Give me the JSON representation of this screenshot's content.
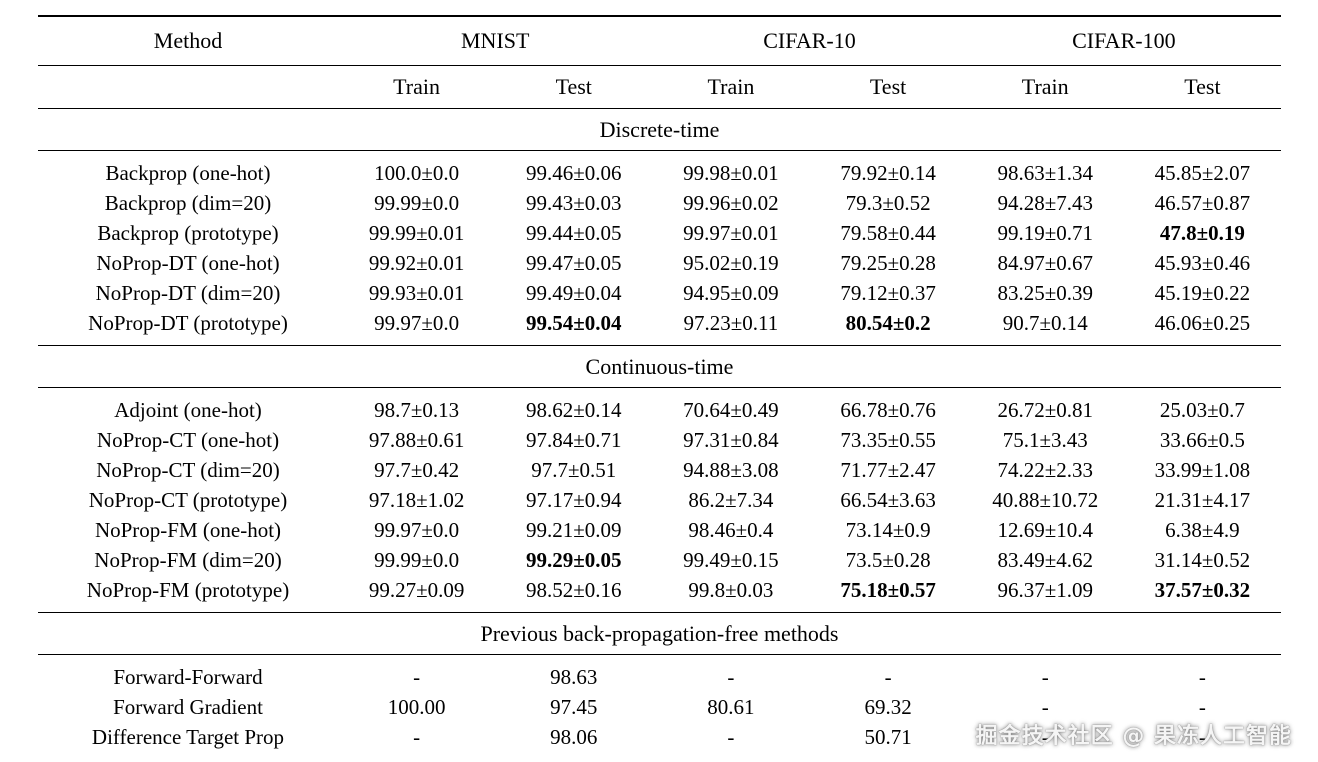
{
  "table": {
    "method_header": "Method",
    "groups": [
      "MNIST",
      "CIFAR-10",
      "CIFAR-100"
    ],
    "subheaders": [
      "Train",
      "Test",
      "Train",
      "Test",
      "Train",
      "Test"
    ],
    "sections": [
      {
        "title": "Discrete-time",
        "rows": [
          {
            "method": "Backprop (one-hot)",
            "values": [
              "100.0±0.0",
              "99.46±0.06",
              "99.98±0.01",
              "79.92±0.14",
              "98.63±1.34",
              "45.85±2.07"
            ],
            "bold": []
          },
          {
            "method": "Backprop (dim=20)",
            "values": [
              "99.99±0.0",
              "99.43±0.03",
              "99.96±0.02",
              "79.3±0.52",
              "94.28±7.43",
              "46.57±0.87"
            ],
            "bold": []
          },
          {
            "method": "Backprop (prototype)",
            "values": [
              "99.99±0.01",
              "99.44±0.05",
              "99.97±0.01",
              "79.58±0.44",
              "99.19±0.71",
              "47.8±0.19"
            ],
            "bold": [
              5
            ]
          },
          {
            "method": "NoProp-DT (one-hot)",
            "values": [
              "99.92±0.01",
              "99.47±0.05",
              "95.02±0.19",
              "79.25±0.28",
              "84.97±0.67",
              "45.93±0.46"
            ],
            "bold": []
          },
          {
            "method": "NoProp-DT (dim=20)",
            "values": [
              "99.93±0.01",
              "99.49±0.04",
              "94.95±0.09",
              "79.12±0.37",
              "83.25±0.39",
              "45.19±0.22"
            ],
            "bold": []
          },
          {
            "method": "NoProp-DT (prototype)",
            "values": [
              "99.97±0.0",
              "99.54±0.04",
              "97.23±0.11",
              "80.54±0.2",
              "90.7±0.14",
              "46.06±0.25"
            ],
            "bold": [
              1,
              3
            ]
          }
        ]
      },
      {
        "title": "Continuous-time",
        "rows": [
          {
            "method": "Adjoint (one-hot)",
            "values": [
              "98.7±0.13",
              "98.62±0.14",
              "70.64±0.49",
              "66.78±0.76",
              "26.72±0.81",
              "25.03±0.7"
            ],
            "bold": []
          },
          {
            "method": "NoProp-CT (one-hot)",
            "values": [
              "97.88±0.61",
              "97.84±0.71",
              "97.31±0.84",
              "73.35±0.55",
              "75.1±3.43",
              "33.66±0.5"
            ],
            "bold": []
          },
          {
            "method": "NoProp-CT (dim=20)",
            "values": [
              "97.7±0.42",
              "97.7±0.51",
              "94.88±3.08",
              "71.77±2.47",
              "74.22±2.33",
              "33.99±1.08"
            ],
            "bold": []
          },
          {
            "method": "NoProp-CT (prototype)",
            "values": [
              "97.18±1.02",
              "97.17±0.94",
              "86.2±7.34",
              "66.54±3.63",
              "40.88±10.72",
              "21.31±4.17"
            ],
            "bold": []
          },
          {
            "method": "NoProp-FM (one-hot)",
            "values": [
              "99.97±0.0",
              "99.21±0.09",
              "98.46±0.4",
              "73.14±0.9",
              "12.69±10.4",
              "6.38±4.9"
            ],
            "bold": []
          },
          {
            "method": "NoProp-FM (dim=20)",
            "values": [
              "99.99±0.0",
              "99.29±0.05",
              "99.49±0.15",
              "73.5±0.28",
              "83.49±4.62",
              "31.14±0.52"
            ],
            "bold": [
              1
            ]
          },
          {
            "method": "NoProp-FM (prototype)",
            "values": [
              "99.27±0.09",
              "98.52±0.16",
              "99.8±0.03",
              "75.18±0.57",
              "96.37±1.09",
              "37.57±0.32"
            ],
            "bold": [
              3,
              5
            ]
          }
        ]
      },
      {
        "title": "Previous back-propagation-free methods",
        "rows": [
          {
            "method": "Forward-Forward",
            "values": [
              "-",
              "98.63",
              "-",
              "-",
              "-",
              "-"
            ],
            "bold": []
          },
          {
            "method": "Forward Gradient",
            "values": [
              "100.00",
              "97.45",
              "80.61",
              "69.32",
              "-",
              "-"
            ],
            "bold": []
          },
          {
            "method": "Difference Target Prop",
            "values": [
              "-",
              "98.06",
              "-",
              "50.71",
              "-",
              "-"
            ],
            "bold": []
          }
        ]
      }
    ]
  },
  "watermark": {
    "text": "掘金技术社区 @ 果冻人工智能"
  }
}
